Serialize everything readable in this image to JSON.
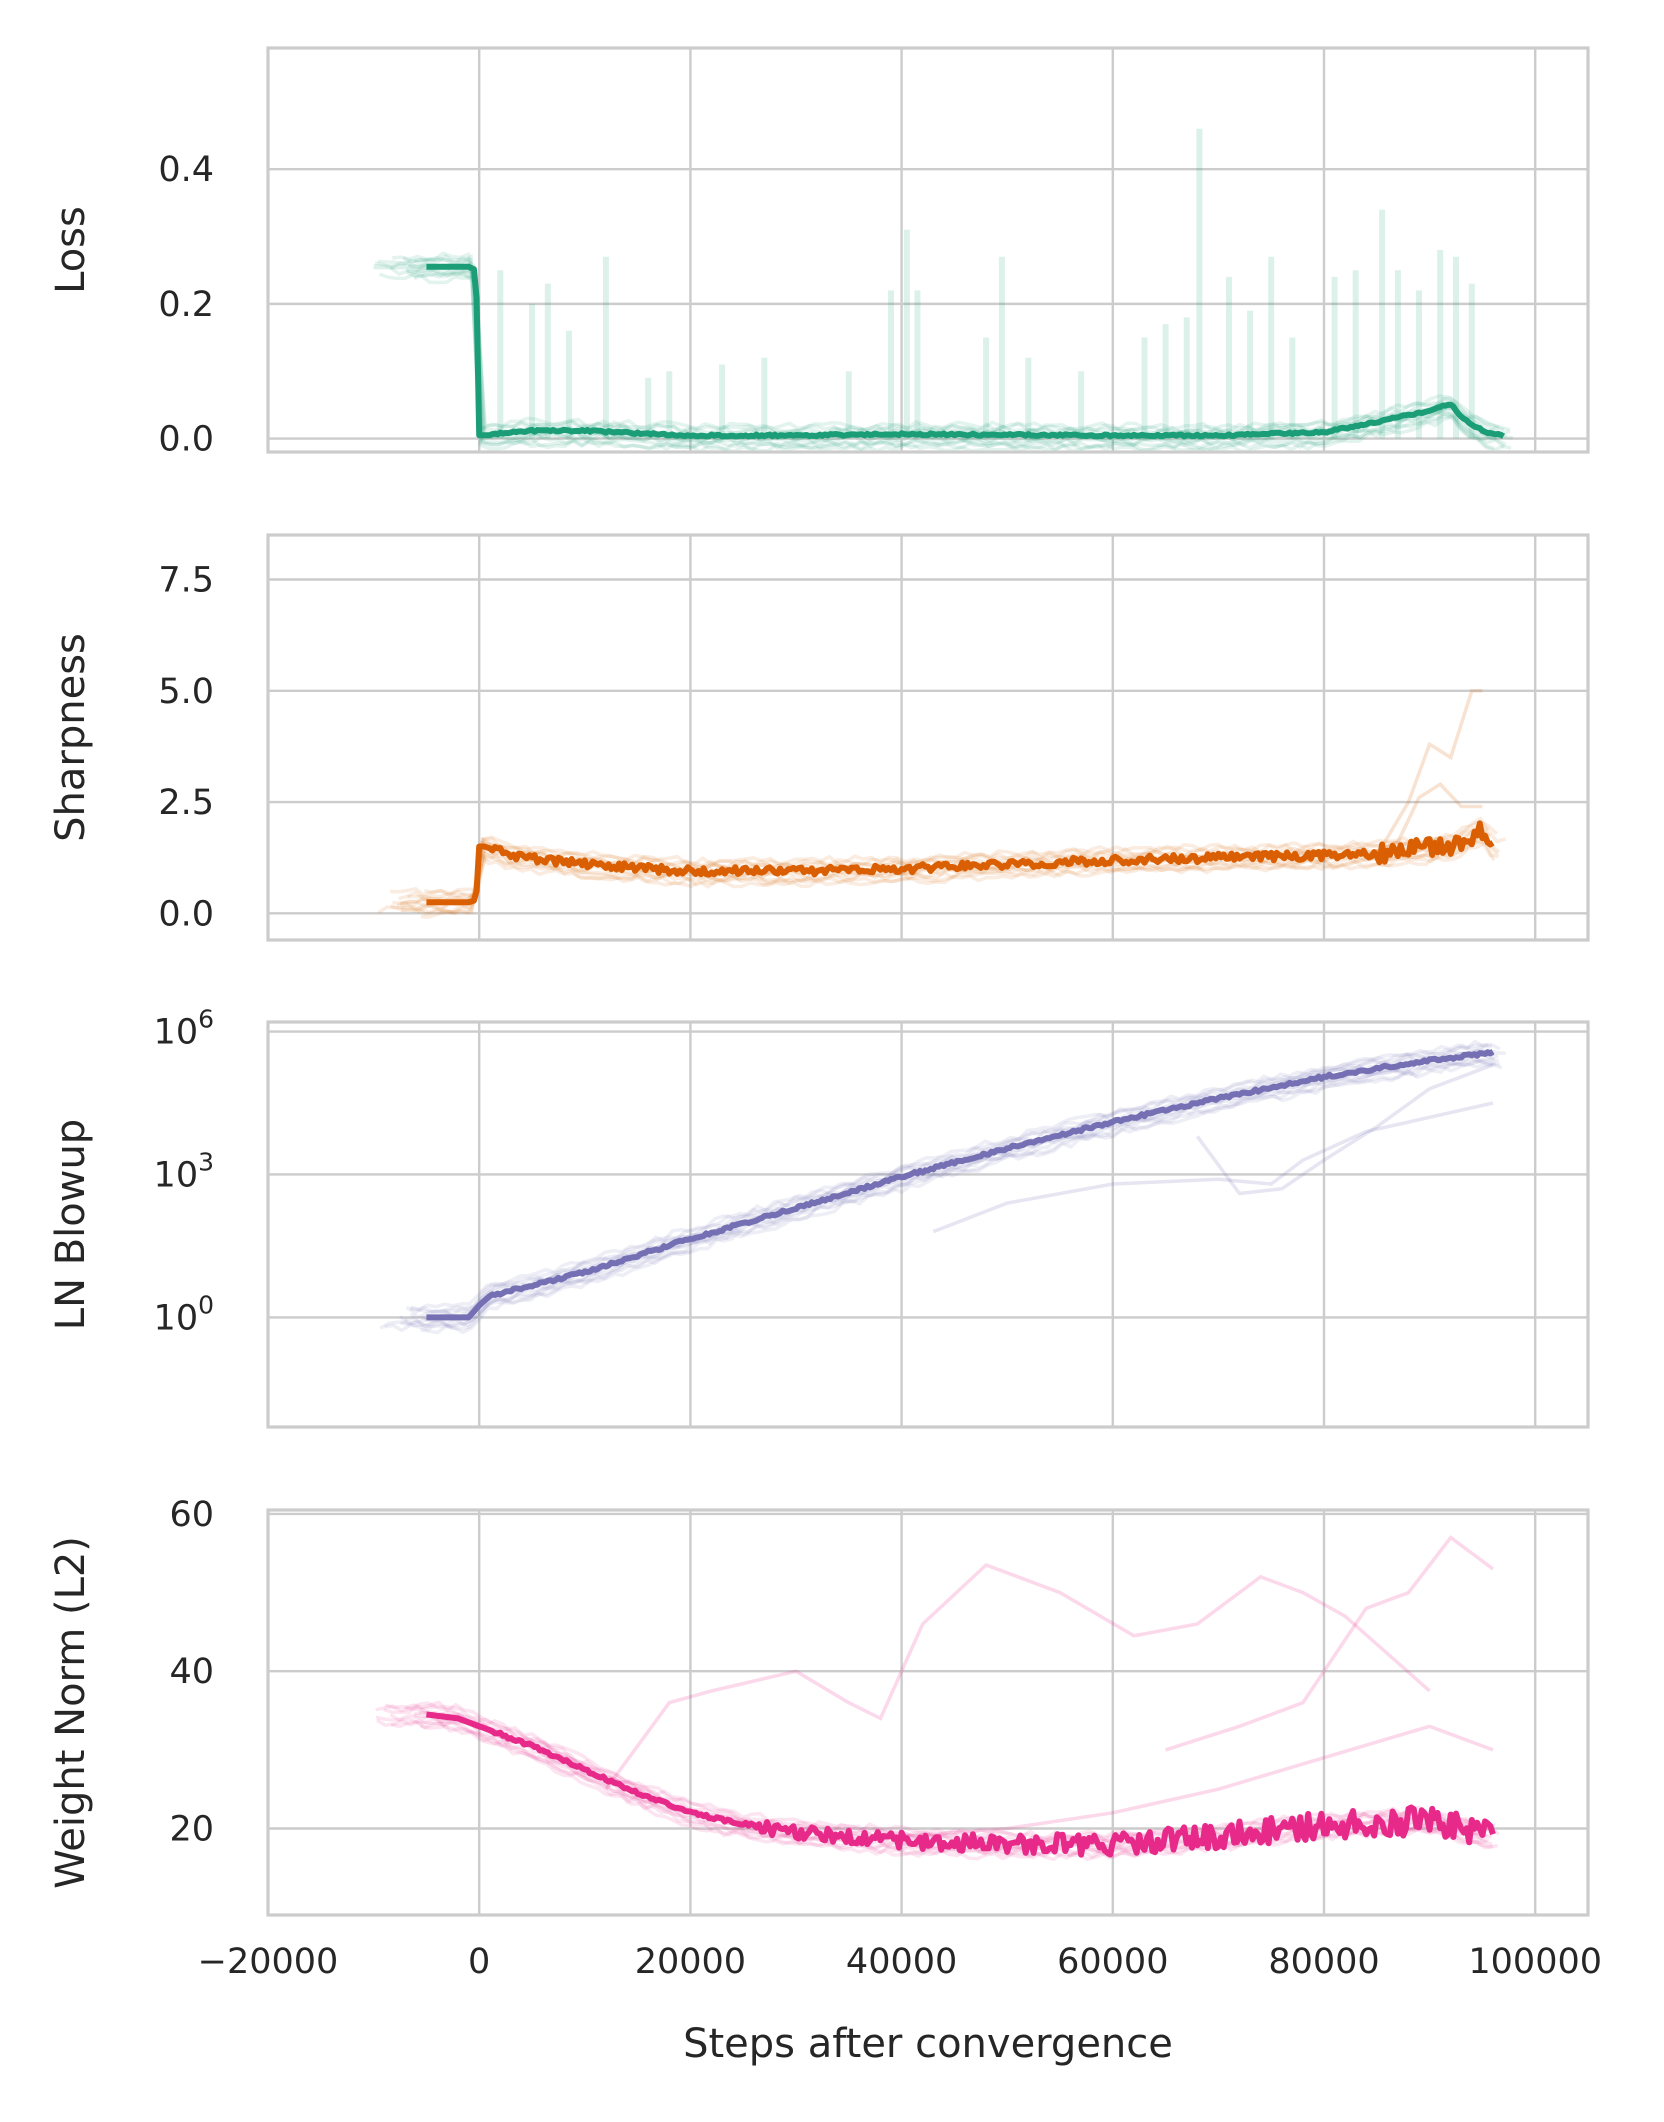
{
  "chart_data": [
    {
      "type": "line",
      "ylabel": "Loss",
      "xlim": [
        -20000,
        105000
      ],
      "ylim": [
        -0.02,
        0.58
      ],
      "yscale": "linear",
      "yticks": [
        {
          "value": 0.0,
          "label": "0.0"
        },
        {
          "value": 0.2,
          "label": "0.2"
        },
        {
          "value": 0.4,
          "label": "0.4"
        }
      ],
      "grid": true,
      "color": "#1b9e77",
      "series": [
        {
          "role": "mean",
          "x": [
            -5000,
            -1000,
            -300,
            0,
            1000,
            5000,
            10000,
            20000,
            30000,
            40000,
            50000,
            60000,
            70000,
            80000,
            84000,
            87000,
            90000,
            92000,
            93000,
            95000,
            97000
          ],
          "y": [
            0.255,
            0.255,
            0.25,
            0.005,
            0.005,
            0.01,
            0.01,
            0.003,
            0.003,
            0.005,
            0.004,
            0.003,
            0.003,
            0.008,
            0.02,
            0.03,
            0.04,
            0.05,
            0.03,
            0.01,
            0.002
          ]
        }
      ],
      "spikes": [
        {
          "x": 2000,
          "y": 0.25
        },
        {
          "x": 5000,
          "y": 0.2
        },
        {
          "x": 6500,
          "y": 0.23
        },
        {
          "x": 8500,
          "y": 0.16
        },
        {
          "x": 12000,
          "y": 0.27
        },
        {
          "x": 16000,
          "y": 0.09
        },
        {
          "x": 18000,
          "y": 0.1
        },
        {
          "x": 23000,
          "y": 0.11
        },
        {
          "x": 27000,
          "y": 0.12
        },
        {
          "x": 35000,
          "y": 0.1
        },
        {
          "x": 39000,
          "y": 0.22
        },
        {
          "x": 40500,
          "y": 0.31
        },
        {
          "x": 41500,
          "y": 0.22
        },
        {
          "x": 48000,
          "y": 0.15
        },
        {
          "x": 49500,
          "y": 0.27
        },
        {
          "x": 52000,
          "y": 0.12
        },
        {
          "x": 57000,
          "y": 0.1
        },
        {
          "x": 63000,
          "y": 0.15
        },
        {
          "x": 65000,
          "y": 0.17
        },
        {
          "x": 67000,
          "y": 0.18
        },
        {
          "x": 68200,
          "y": 0.46
        },
        {
          "x": 71000,
          "y": 0.24
        },
        {
          "x": 73000,
          "y": 0.19
        },
        {
          "x": 75000,
          "y": 0.27
        },
        {
          "x": 77000,
          "y": 0.15
        },
        {
          "x": 81000,
          "y": 0.24
        },
        {
          "x": 83000,
          "y": 0.25
        },
        {
          "x": 85500,
          "y": 0.34
        },
        {
          "x": 87000,
          "y": 0.25
        },
        {
          "x": 89000,
          "y": 0.22
        },
        {
          "x": 91000,
          "y": 0.28
        },
        {
          "x": 92500,
          "y": 0.27
        },
        {
          "x": 94000,
          "y": 0.23
        }
      ]
    },
    {
      "type": "line",
      "ylabel": "Sharpness",
      "xlim": [
        -20000,
        105000
      ],
      "ylim": [
        -0.6,
        8.5
      ],
      "yscale": "linear",
      "yticks": [
        {
          "value": 0.0,
          "label": "0.0"
        },
        {
          "value": 2.5,
          "label": "2.5"
        },
        {
          "value": 5.0,
          "label": "5.0"
        },
        {
          "value": 7.5,
          "label": "7.5"
        }
      ],
      "grid": true,
      "color": "#d95f02",
      "series": [
        {
          "role": "mean",
          "x": [
            -5000,
            -1000,
            -300,
            0,
            500,
            3000,
            10000,
            20000,
            30000,
            40000,
            50000,
            60000,
            70000,
            80000,
            85000,
            90000,
            93000,
            95000,
            96000
          ],
          "y": [
            0.25,
            0.25,
            0.3,
            1.5,
            1.5,
            1.3,
            1.1,
            0.95,
            0.95,
            1.0,
            1.1,
            1.2,
            1.25,
            1.3,
            1.35,
            1.45,
            1.6,
            1.9,
            1.5
          ]
        },
        {
          "role": "outlier",
          "x": [
            85000,
            88000,
            90000,
            92000,
            94000,
            95000
          ],
          "y": [
            1.3,
            2.5,
            3.8,
            3.5,
            5.0,
            5.0
          ]
        },
        {
          "role": "outlier",
          "x": [
            84000,
            87000,
            89000,
            91000,
            93000,
            95000
          ],
          "y": [
            1.3,
            1.6,
            2.6,
            2.9,
            2.4,
            2.4
          ]
        }
      ]
    },
    {
      "type": "line",
      "ylabel": "LN Blowup",
      "xlim": [
        -20000,
        105000
      ],
      "ylim": [
        -2.3,
        6.2
      ],
      "yscale": "log",
      "yticks": [
        {
          "value": 0,
          "label": "10",
          "sup": "0"
        },
        {
          "value": 3,
          "label": "10",
          "sup": "3"
        },
        {
          "value": 6,
          "label": "10",
          "sup": "6"
        }
      ],
      "grid": true,
      "color": "#7570b3",
      "series": [
        {
          "role": "mean",
          "x": [
            -5000,
            -1000,
            0,
            1000,
            10000,
            20000,
            30000,
            40000,
            50000,
            60000,
            70000,
            80000,
            90000,
            96000
          ],
          "y": [
            0.0,
            0.0,
            0.25,
            0.45,
            0.95,
            1.65,
            2.3,
            2.95,
            3.55,
            4.1,
            4.6,
            5.05,
            5.4,
            5.55
          ]
        },
        {
          "role": "outlier",
          "x": [
            43000,
            50000,
            60000,
            70000,
            75000,
            78000,
            84000,
            90000,
            96000
          ],
          "y": [
            1.8,
            2.4,
            2.8,
            2.9,
            2.8,
            3.3,
            3.9,
            4.2,
            4.5
          ]
        },
        {
          "role": "outlier",
          "x": [
            68000,
            72000,
            76000,
            80000,
            85000,
            90000,
            96000
          ],
          "y": [
            3.8,
            2.6,
            2.7,
            3.3,
            4.0,
            4.8,
            5.3
          ]
        }
      ]
    },
    {
      "type": "line",
      "xlabel": "Steps after convergence",
      "ylabel": "Weight Norm (L2)",
      "xlim": [
        -20000,
        105000
      ],
      "ylim": [
        9,
        60.5
      ],
      "yscale": "linear",
      "yticks": [
        {
          "value": 20,
          "label": "20"
        },
        {
          "value": 40,
          "label": "40"
        },
        {
          "value": 60,
          "label": "60"
        }
      ],
      "xticks": [
        {
          "value": -20000,
          "label": "−20000"
        },
        {
          "value": 0,
          "label": "0"
        },
        {
          "value": 20000,
          "label": "20000"
        },
        {
          "value": 40000,
          "label": "40000"
        },
        {
          "value": 60000,
          "label": "60000"
        },
        {
          "value": 80000,
          "label": "80000"
        },
        {
          "value": 100000,
          "label": "100000"
        }
      ],
      "grid": true,
      "color": "#e7298a",
      "series": [
        {
          "role": "mean",
          "x": [
            -5000,
            -2000,
            0,
            5000,
            10000,
            15000,
            20000,
            25000,
            30000,
            40000,
            50000,
            60000,
            70000,
            80000,
            90000,
            96000
          ],
          "y": [
            34.5,
            34,
            33,
            30.5,
            27.5,
            24.5,
            22,
            20.5,
            19.5,
            18.5,
            18,
            18,
            19,
            20.5,
            21,
            19
          ]
        },
        {
          "role": "outlier",
          "x": [
            12000,
            18000,
            22000,
            30000,
            35000,
            38000,
            42000,
            48000,
            55000,
            62000,
            68000,
            74000,
            78000,
            82000,
            90000
          ],
          "y": [
            25,
            36,
            37.5,
            40,
            36,
            34,
            46,
            53.5,
            50,
            44.5,
            46,
            52,
            50,
            47,
            37.5
          ]
        },
        {
          "role": "outlier",
          "x": [
            65000,
            72000,
            78000,
            84000,
            88000,
            92000,
            96000
          ],
          "y": [
            30,
            33,
            36,
            48,
            50,
            57,
            53
          ]
        },
        {
          "role": "outlier",
          "x": [
            40000,
            50000,
            60000,
            70000,
            80000,
            90000,
            96000
          ],
          "y": [
            19,
            20,
            22,
            25,
            29,
            33,
            30
          ]
        }
      ]
    }
  ]
}
